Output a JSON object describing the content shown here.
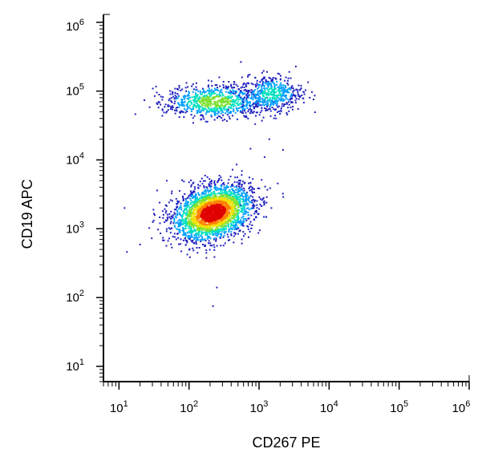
{
  "chart_data": {
    "type": "scatter",
    "title": "",
    "xlabel": "CD267 PE",
    "ylabel": "CD19 APC",
    "xscale": "log",
    "yscale": "log",
    "xlim": [
      6,
      1000000
    ],
    "ylim": [
      6,
      1300000
    ],
    "grid": false,
    "legend": "none",
    "x_ticks": [
      {
        "value": 10,
        "base": "10",
        "exp": "1"
      },
      {
        "value": 100,
        "base": "10",
        "exp": "2"
      },
      {
        "value": 1000,
        "base": "10",
        "exp": "3"
      },
      {
        "value": 10000,
        "base": "10",
        "exp": "4"
      },
      {
        "value": 100000,
        "base": "10",
        "exp": "5"
      },
      {
        "value": 1000000,
        "base": "10",
        "exp": "6"
      }
    ],
    "y_ticks": [
      {
        "value": 10,
        "base": "10",
        "exp": "1"
      },
      {
        "value": 100,
        "base": "10",
        "exp": "2"
      },
      {
        "value": 1000,
        "base": "10",
        "exp": "3"
      },
      {
        "value": 10000,
        "base": "10",
        "exp": "4"
      },
      {
        "value": 100000,
        "base": "10",
        "exp": "5"
      },
      {
        "value": 1000000,
        "base": "10",
        "exp": "6"
      }
    ],
    "density_colors": [
      "#1f1fbf",
      "#00a0ff",
      "#00e0c0",
      "#7fe030",
      "#f0e000",
      "#ff8000",
      "#e00000"
    ],
    "series": [
      {
        "population": "lower",
        "points_count": 2600,
        "center": [
          220,
          1700
        ],
        "spread_log10": [
          0.28,
          0.2
        ],
        "correlation": 0.3,
        "outlier_points": [
          [
            13,
            460
          ],
          [
            20,
            590
          ],
          [
            35,
            3600
          ],
          [
            220,
            75
          ],
          [
            250,
            140
          ],
          [
            540,
            2200
          ],
          [
            800,
            2400
          ],
          [
            1500,
            2000
          ],
          [
            12,
            2000
          ]
        ]
      },
      {
        "population": "upper",
        "points_count": 1300,
        "center": [
          230,
          70000
        ],
        "spread_log10": [
          0.34,
          0.12
        ],
        "correlation": 0.0,
        "secondary_center": [
          1500,
          90000
        ],
        "secondary_spread_log10": [
          0.22,
          0.14
        ],
        "outlier_points": [
          [
            1300,
            190000
          ],
          [
            2700,
            190000
          ],
          [
            700,
            170000
          ],
          [
            1400,
            20000
          ],
          [
            2200,
            14000
          ],
          [
            1200,
            11000
          ],
          [
            50,
            60000
          ],
          [
            4000,
            110000
          ]
        ]
      }
    ]
  }
}
